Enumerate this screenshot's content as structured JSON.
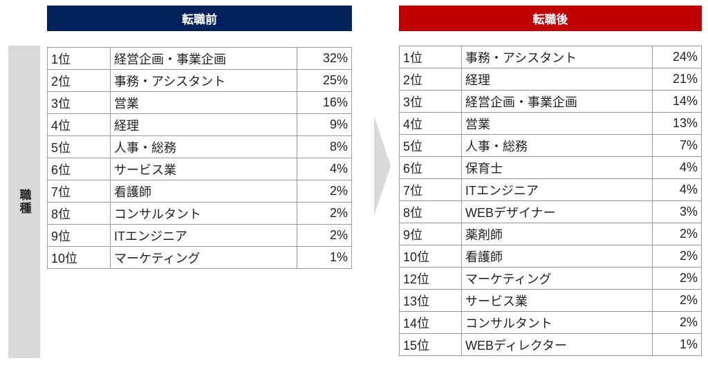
{
  "side_label": "職種",
  "before": {
    "title": "転職前",
    "color": "#00215c",
    "rows": [
      {
        "rank": "1位",
        "job": "経営企画・事業企画",
        "pct": "32%"
      },
      {
        "rank": "2位",
        "job": "事務・アシスタント",
        "pct": "25%"
      },
      {
        "rank": "3位",
        "job": "営業",
        "pct": "16%"
      },
      {
        "rank": "4位",
        "job": "経理",
        "pct": "9%"
      },
      {
        "rank": "5位",
        "job": "人事・総務",
        "pct": "8%"
      },
      {
        "rank": "6位",
        "job": "サービス業",
        "pct": "4%"
      },
      {
        "rank": "7位",
        "job": "看護師",
        "pct": "2%"
      },
      {
        "rank": "8位",
        "job": "コンサルタント",
        "pct": "2%"
      },
      {
        "rank": "9位",
        "job": "ITエンジニア",
        "pct": "2%"
      },
      {
        "rank": "10位",
        "job": "マーケティング",
        "pct": "1%"
      }
    ]
  },
  "after": {
    "title": "転職後",
    "color": "#c00000",
    "rows": [
      {
        "rank": "1位",
        "job": "事務・アシスタント",
        "pct": "24%"
      },
      {
        "rank": "2位",
        "job": "経理",
        "pct": "21%"
      },
      {
        "rank": "3位",
        "job": "経営企画・事業企画",
        "pct": "14%"
      },
      {
        "rank": "4位",
        "job": "営業",
        "pct": "13%"
      },
      {
        "rank": "5位",
        "job": "人事・総務",
        "pct": "7%"
      },
      {
        "rank": "6位",
        "job": "保育士",
        "pct": "4%"
      },
      {
        "rank": "7位",
        "job": "ITエンジニア",
        "pct": "4%"
      },
      {
        "rank": "8位",
        "job": "WEBデザイナー",
        "pct": "3%"
      },
      {
        "rank": "9位",
        "job": "薬剤師",
        "pct": "2%"
      },
      {
        "rank": "10位",
        "job": "看護師",
        "pct": "2%"
      },
      {
        "rank": "12位",
        "job": "マーケティング",
        "pct": "2%"
      },
      {
        "rank": "13位",
        "job": "サービス業",
        "pct": "2%"
      },
      {
        "rank": "14位",
        "job": "コンサルタント",
        "pct": "2%"
      },
      {
        "rank": "15位",
        "job": "WEBディレクター",
        "pct": "1%"
      }
    ]
  }
}
